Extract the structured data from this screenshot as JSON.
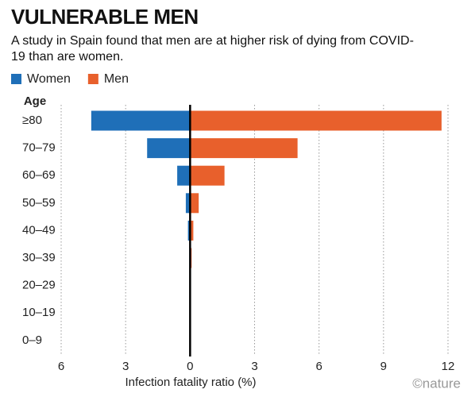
{
  "chart_data": {
    "type": "butterfly",
    "title": "VULNERABLE MEN",
    "subtitle": "A study in Spain found that men are at higher risk of dying from COVID-19 than are women.",
    "y_label": "Age",
    "x_label": "Infection fatality ratio (%)",
    "credit": "©nature",
    "categories": [
      "≥80",
      "70–79",
      "60–69",
      "50–59",
      "40–49",
      "30–39",
      "20–29",
      "10–19",
      "0–9"
    ],
    "series": [
      {
        "name": "Women",
        "color": "#1f6fb8",
        "values": [
          -4.6,
          -2.0,
          -0.6,
          -0.2,
          -0.1,
          -0.02,
          0,
          0,
          0
        ]
      },
      {
        "name": "Men",
        "color": "#e8602c",
        "values": [
          11.7,
          5.0,
          1.6,
          0.4,
          0.15,
          0.07,
          0.02,
          0,
          0
        ]
      }
    ],
    "xlim": [
      -6,
      12
    ],
    "xticks": [
      {
        "value": -6,
        "label": "6"
      },
      {
        "value": -3,
        "label": "3"
      },
      0,
      3,
      6,
      9,
      12
    ],
    "grid": true
  }
}
